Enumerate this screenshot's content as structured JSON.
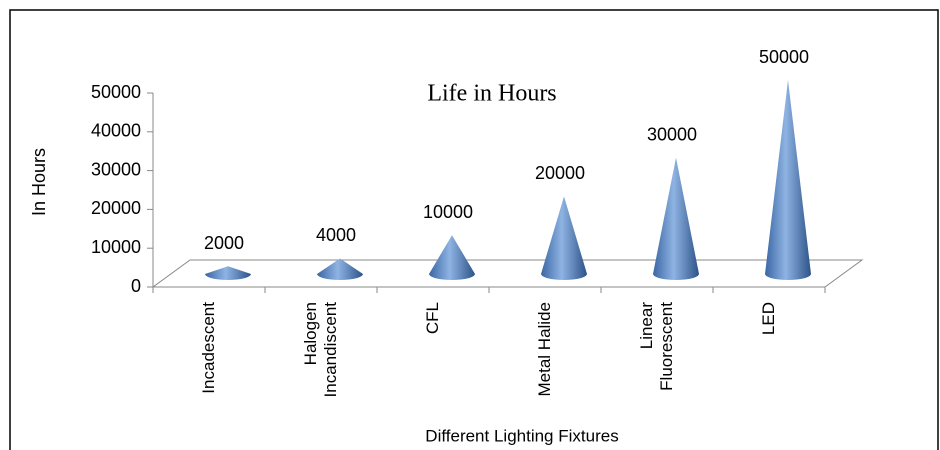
{
  "chart_data": {
    "type": "cone",
    "title": "Life in Hours",
    "y_label": "In Hours",
    "x_label": "Different Lighting Fixtures",
    "categories": [
      "Incadescent",
      "Halogen Incandiscent",
      "CFL",
      "Metal Halide",
      "Linear Fluorescent",
      "LED"
    ],
    "values": [
      2000,
      4000,
      10000,
      20000,
      30000,
      50000
    ],
    "color": "#4f81bd",
    "ylim": [
      0,
      50000
    ],
    "yticks": [
      0,
      10000,
      20000,
      30000,
      40000,
      50000
    ]
  }
}
